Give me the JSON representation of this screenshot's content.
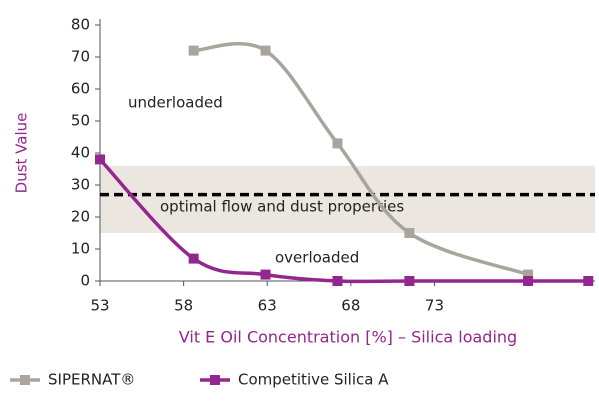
{
  "chart_data": {
    "type": "line",
    "x_label": "Vit E Oil Concentration [%] – Silica loading",
    "y_label": "Dust Value",
    "series": [
      {
        "name": "SIPERNAT®",
        "color": "#a9a59d",
        "x": [
          58.6,
          62.9,
          67.2,
          71.5,
          78.6
        ],
        "values": [
          72,
          72,
          43,
          15,
          2
        ]
      },
      {
        "name": "Competitive Silica A",
        "color": "#93278f",
        "x": [
          53,
          58.6,
          62.9,
          67.2,
          71.5,
          78.6,
          82.2
        ],
        "values": [
          38,
          7,
          2,
          0,
          0,
          0,
          0
        ]
      }
    ],
    "xlim": [
      53,
      82.6
    ],
    "xticks": [
      53,
      58,
      63,
      68,
      73
    ],
    "ylim": [
      0,
      80
    ],
    "yticks": [
      0,
      10,
      20,
      30,
      40,
      50,
      60,
      70,
      80
    ],
    "optimal_range": [
      15,
      36
    ],
    "optimal_line": 27,
    "annotations": [
      "underloaded",
      "optimal flow and dust properties",
      "overloaded"
    ],
    "legend": "bottom-left"
  }
}
